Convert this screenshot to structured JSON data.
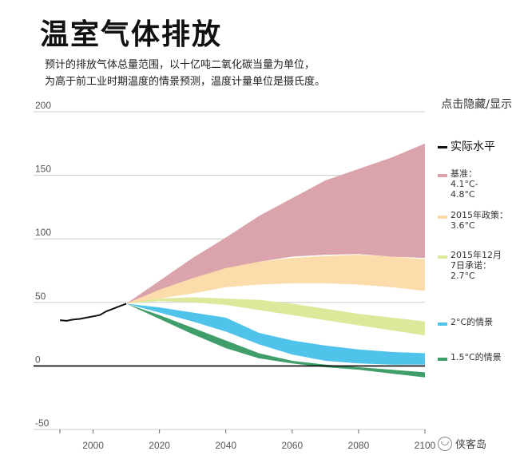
{
  "header": {
    "title": "温室气体排放",
    "subtitle_line1": "预计的排放气体总量范围，以十亿吨二氧化碳当量为单位，",
    "subtitle_line2": "为高于前工业时期温度的情景预测，温度计量单位是摄氏度。"
  },
  "toggle_label": "点击隐藏/显示",
  "watermark": {
    "text": "侠客岛",
    "icon": "chat-bubble-icon"
  },
  "colors": {
    "actual": "#111111",
    "baseline": "#dba4ad",
    "policy2015": "#fbdcaa",
    "pledge2015": "#dde89a",
    "c2": "#4fc3ea",
    "c15": "#3f9e6a",
    "grid": "#cccccc",
    "zero_line": "#000000"
  },
  "legend": [
    {
      "key": "actual",
      "label": "实际水平"
    },
    {
      "key": "baseline",
      "label": "基准：\n4.1°C-\n4.8°C"
    },
    {
      "key": "policy2015",
      "label": "2015年政策：\n3.6°C"
    },
    {
      "key": "pledge2015",
      "label": "2015年12月\n7日承诺：\n2.7°C"
    },
    {
      "key": "c2",
      "label": "2°C的情景"
    },
    {
      "key": "c15",
      "label": "1.5°C的情景"
    }
  ],
  "chart_data": {
    "type": "area",
    "xlim": [
      1990,
      2100
    ],
    "ylim": [
      -50,
      200
    ],
    "x_ticks": [
      "2000",
      "2020",
      "2040",
      "2060",
      "2080",
      "2100"
    ],
    "x_tick_values": [
      2000,
      2020,
      2040,
      2060,
      2080,
      2100
    ],
    "y_ticks": [
      "200",
      "150",
      "100",
      "50",
      "0",
      "-50"
    ],
    "y_tick_values": [
      200,
      150,
      100,
      50,
      0,
      -50
    ],
    "grid": true,
    "legend_position": "right",
    "series": [
      {
        "key": "actual",
        "name": "实际水平",
        "kind": "line",
        "x": [
          1990,
          1992,
          1994,
          1996,
          1998,
          2000,
          2002,
          2004,
          2006,
          2008,
          2010
        ],
        "y": [
          36,
          35.5,
          36.5,
          37,
          38,
          39,
          40,
          43,
          45,
          47,
          49
        ]
      },
      {
        "key": "baseline",
        "name": "基准：4.1°C-4.8°C",
        "kind": "band",
        "x": [
          2010,
          2020,
          2030,
          2040,
          2050,
          2060,
          2070,
          2080,
          2090,
          2100
        ],
        "upper": [
          49,
          67,
          85,
          101,
          118,
          132,
          146,
          155,
          164,
          175
        ],
        "lower": [
          49,
          58,
          67,
          76,
          82,
          86,
          87.5,
          88,
          86,
          85
        ]
      },
      {
        "key": "policy2015",
        "name": "2015年政策：3.6°C",
        "kind": "band",
        "x": [
          2010,
          2020,
          2030,
          2040,
          2050,
          2060,
          2070,
          2080,
          2090,
          2100
        ],
        "upper": [
          49,
          60,
          69,
          77,
          82,
          85,
          86.5,
          87.5,
          86,
          84
        ],
        "lower": [
          49,
          53,
          57,
          62,
          64,
          65,
          65,
          64,
          62,
          59
        ]
      },
      {
        "key": "pledge2015",
        "name": "2015年12月7日承诺：2.7°C",
        "kind": "band",
        "x": [
          2010,
          2020,
          2030,
          2040,
          2050,
          2060,
          2070,
          2080,
          2090,
          2100
        ],
        "upper": [
          49,
          53,
          54,
          53,
          52,
          49,
          45,
          41,
          38,
          35
        ],
        "lower": [
          49,
          51,
          50,
          48,
          44,
          40,
          36,
          32,
          28,
          24
        ]
      },
      {
        "key": "c2",
        "name": "2°C的情景",
        "kind": "band",
        "x": [
          2010,
          2020,
          2030,
          2040,
          2050,
          2060,
          2070,
          2080,
          2090,
          2100
        ],
        "upper": [
          49,
          46,
          42,
          38,
          26,
          20,
          16,
          13,
          11,
          10
        ],
        "lower": [
          49,
          42,
          35,
          27,
          17,
          9,
          4,
          2,
          1,
          1
        ]
      },
      {
        "key": "c15",
        "name": "1.5°C的情景",
        "kind": "band",
        "x": [
          2010,
          2020,
          2030,
          2040,
          2050,
          2060,
          2070,
          2080,
          2090,
          2100
        ],
        "upper": [
          49,
          40,
          30,
          20,
          10,
          4,
          1,
          -1,
          -3,
          -5
        ],
        "lower": [
          49,
          37,
          25,
          14,
          6,
          2,
          -1,
          -3,
          -6,
          -9
        ]
      }
    ]
  }
}
